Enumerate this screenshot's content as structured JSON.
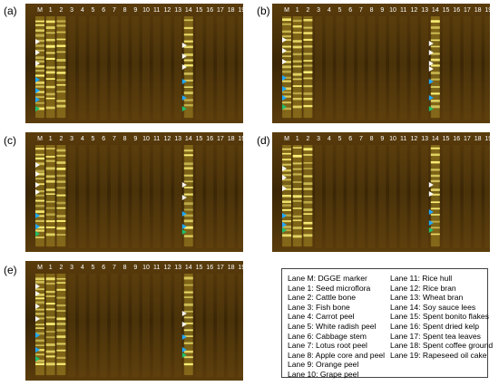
{
  "panel_labels": [
    "(a)",
    "(b)",
    "(c)",
    "(d)",
    "(e)"
  ],
  "lane_labels": [
    "M",
    "1",
    "2",
    "3",
    "4",
    "5",
    "6",
    "7",
    "8",
    "9",
    "10",
    "11",
    "12",
    "13",
    "14",
    "15",
    "16",
    "17",
    "18",
    "19"
  ],
  "colors": {
    "gel_dark": "#3a2606",
    "gel_mid": "#5a3c0c",
    "band_bright": "#fff47a",
    "band_yellow": "#e8d23a",
    "arrow_white": "#ffffff",
    "arrow_blue": "#1ea8ff",
    "arrow_green": "#1fbf6a"
  },
  "legend": {
    "left": [
      "Lane M: DGGE marker",
      "Lane 1: Seed microflora",
      "Lane 2: Cattle bone",
      "Lane 3: Fish bone",
      "Lane 4: Carrot peel",
      "Lane 5: White radish peel",
      "Lane 6: Cabbage stem",
      "Lane 7: Lotus root peel",
      "Lane 8: Apple core and peel",
      "Lane 9: Orange peel",
      "Lane 10: Grape peel"
    ],
    "right": [
      "Lane 11: Rice hull",
      "Lane 12: Rice bran",
      "Lane 13: Wheat bran",
      "Lane 14: Soy sauce lees",
      "Lane 15: Spent bonito flakes",
      "Lane 16: Spent dried kelp",
      "Lane 17: Spent tea leaves",
      "Lane 18: Spent coffee ground",
      "Lane 19: Rapeseed oil cake"
    ]
  }
}
